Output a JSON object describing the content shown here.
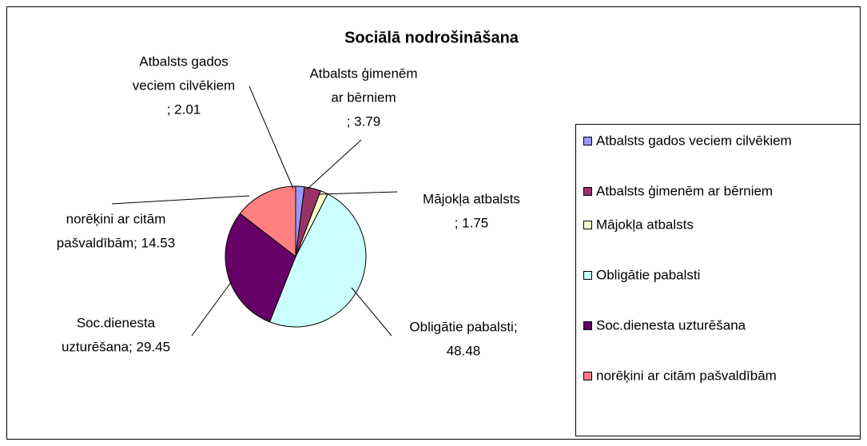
{
  "chart_data": {
    "type": "pie",
    "title": "Sociālā nodrošināšana",
    "categories": [
      "Atbalsts gados veciem cilvēkiem",
      "Atbalsts ģimenēm ar bērniem",
      "Mājokļa atbalsts",
      "Obligātie pabalsti",
      "Soc.dienesta uzturēšana",
      "norēķini ar citām pašvaldībām"
    ],
    "values": [
      2.01,
      3.79,
      1.75,
      48.48,
      29.45,
      14.53
    ],
    "value_labels": [
      [
        "Atbalsts gados",
        "veciem cilvēkiem",
        "; 2.01"
      ],
      [
        "Atbalsts ģimenēm",
        "ar bērniem",
        "; 3.79"
      ],
      [
        "Mājokļa atbalsts",
        "; 1.75"
      ],
      [
        "Obligātie pabalsti;",
        "48.48"
      ],
      [
        "Soc.dienesta",
        "uzturēšana; 29.45"
      ],
      [
        "norēķini ar citām",
        "pašvaldībām; 14.53"
      ]
    ],
    "colors": [
      "#9999ff",
      "#993366",
      "#ffffcc",
      "#ccffff",
      "#660066",
      "#ff8080"
    ],
    "legend": "right"
  }
}
